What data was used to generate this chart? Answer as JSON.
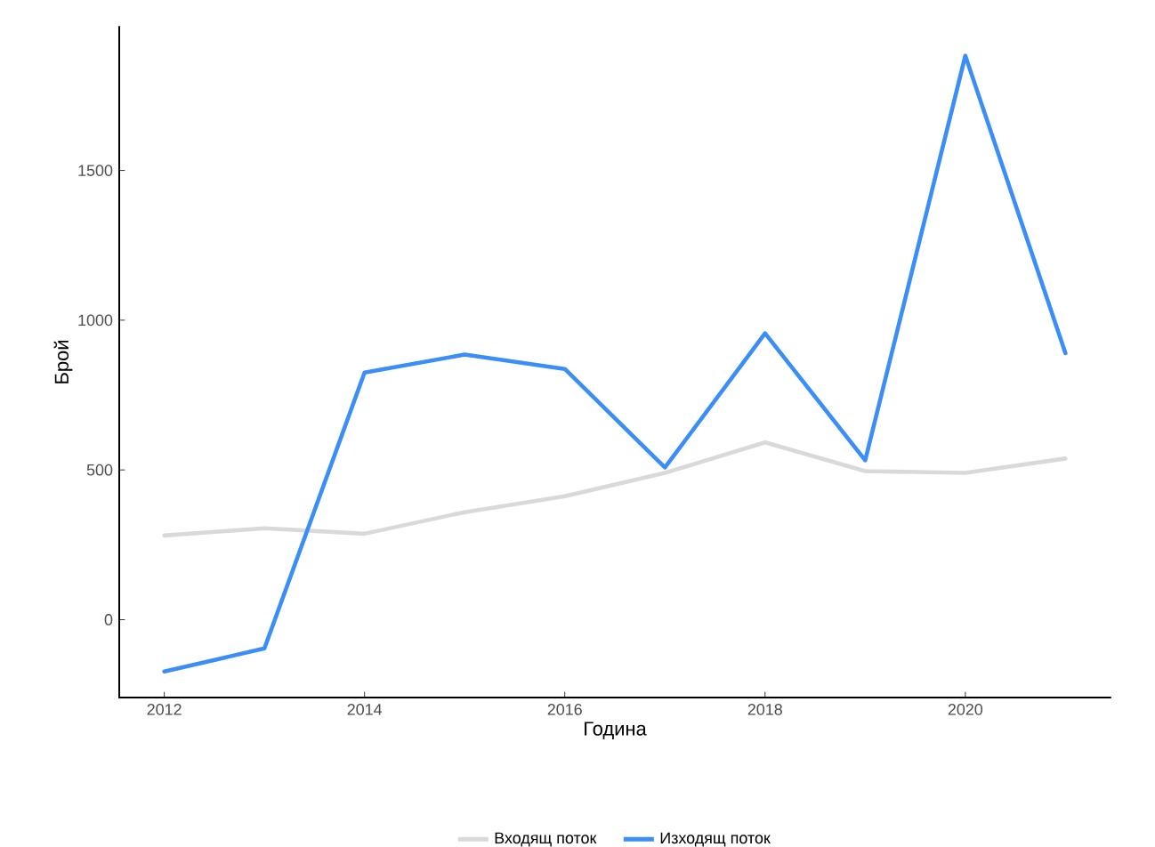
{
  "chart_data": {
    "type": "line",
    "xlabel": "Година",
    "ylabel": "Брой",
    "x": [
      2012,
      2013,
      2014,
      2015,
      2016,
      2017,
      2018,
      2019,
      2020,
      2021
    ],
    "series": [
      {
        "name": "Входящ поток",
        "color": "#d9d9d9",
        "values": [
          281,
          305,
          287,
          359,
          412,
          490,
          592,
          496,
          490,
          538
        ]
      },
      {
        "name": "Изходящ поток",
        "color": "#3a8ef6",
        "values": [
          -173,
          -96,
          825,
          885,
          837,
          508,
          956,
          532,
          1883,
          890
        ]
      }
    ],
    "xlim": [
      2011.55,
      2021.45
    ],
    "ylim": [
      -260,
      1980
    ],
    "xticks": [
      2012,
      2014,
      2016,
      2018,
      2020
    ],
    "yticks": [
      0,
      500,
      1000,
      1500
    ],
    "grid": false,
    "legend": "bottom",
    "marker": "none",
    "line_style": "solid"
  }
}
